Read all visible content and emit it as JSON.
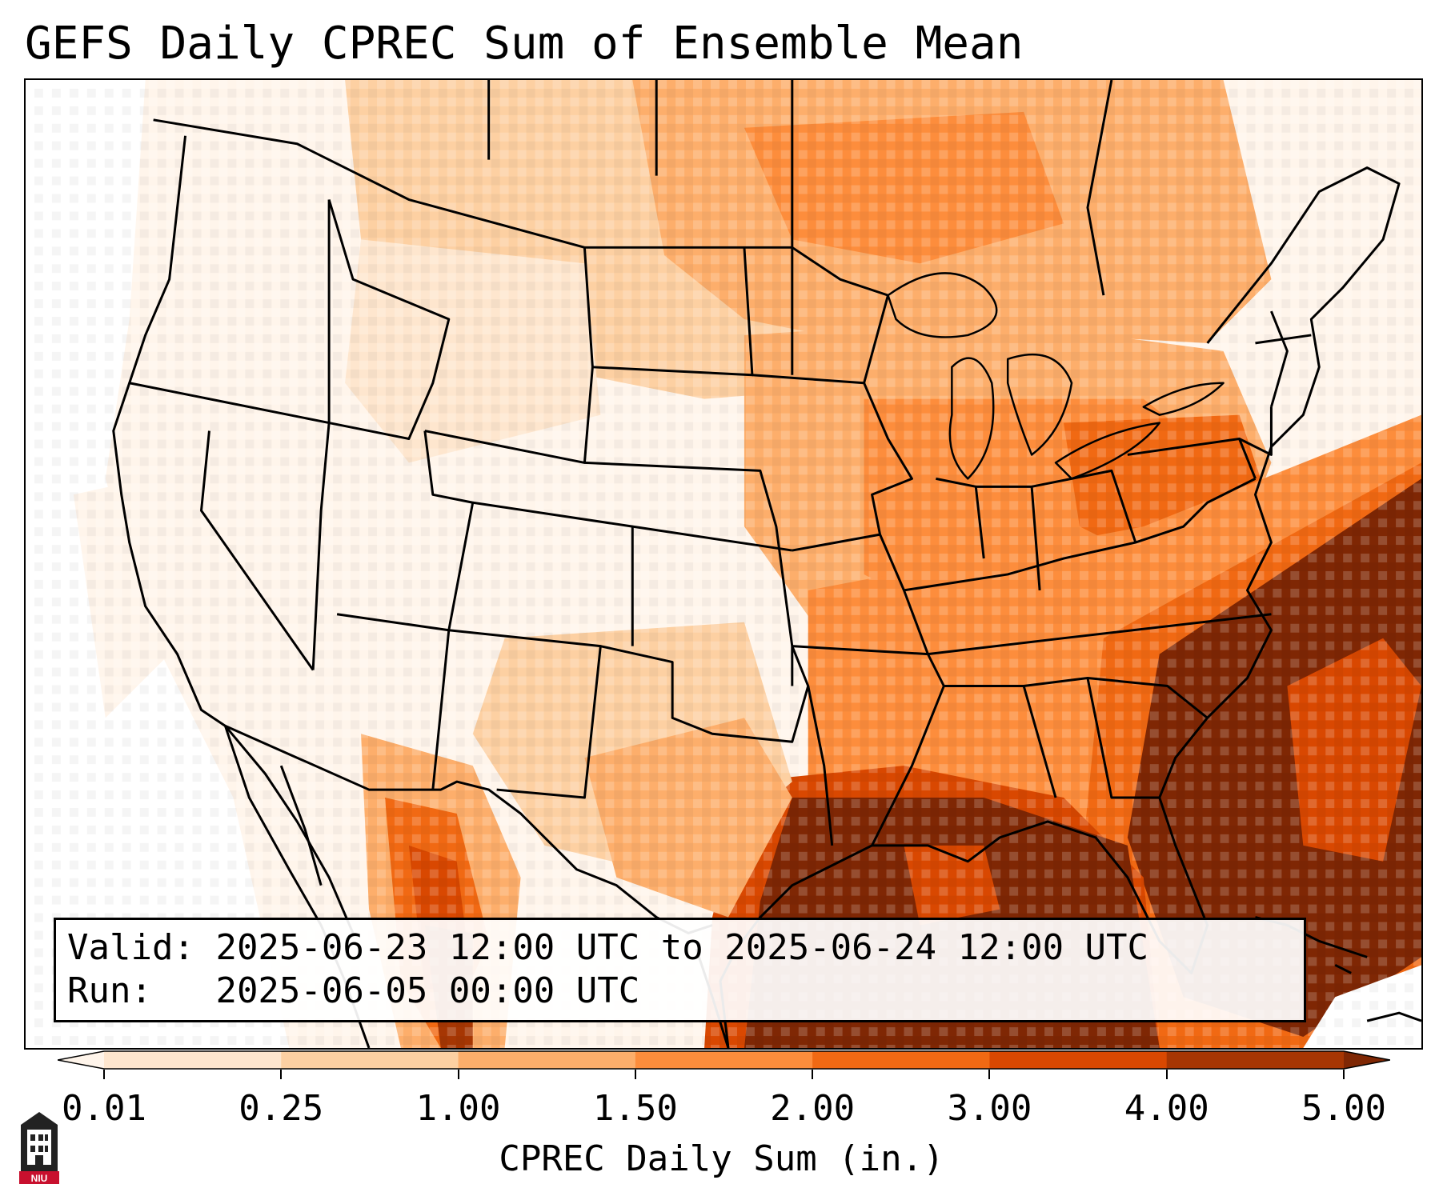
{
  "title": "GEFS Daily CPREC Sum of Ensemble Mean",
  "info": {
    "valid_label": "Valid:",
    "valid_value": "2025-06-23 12:00 UTC to 2025-06-24 12:00 UTC",
    "run_label": "Run:",
    "run_value": "2025-06-05 00:00 UTC"
  },
  "colorbar": {
    "label": "CPREC Daily Sum (in.)",
    "ticks": [
      "0.01",
      "0.25",
      "1.00",
      "1.50",
      "2.00",
      "3.00",
      "4.00",
      "5.00"
    ],
    "colors": [
      "#fff5eb",
      "#fee6ce",
      "#fdd0a2",
      "#fdae6b",
      "#fd8d3c",
      "#f16913",
      "#d94801",
      "#a63603",
      "#7f2704"
    ]
  },
  "logo": {
    "text": "NIU",
    "color": "#c8102e"
  },
  "map": {
    "projection": "Lambert conformal",
    "region": "Contiguous United States",
    "colors": {
      "ocean_far": "#fee6ce",
      "gulf": "#7f2704",
      "boundary": "#000000"
    }
  }
}
